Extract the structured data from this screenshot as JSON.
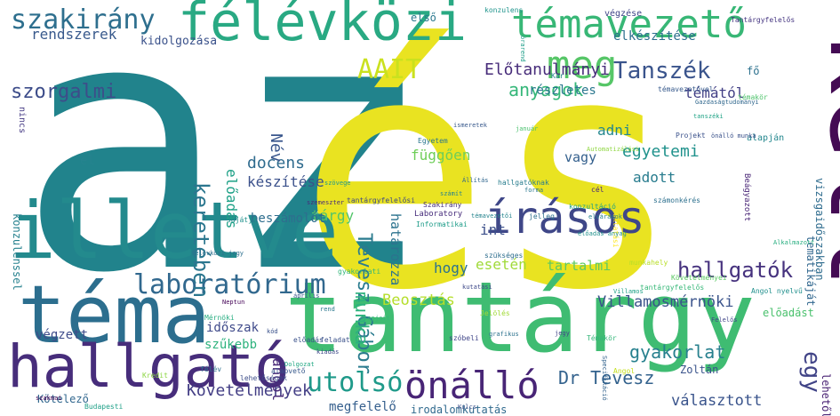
{
  "words": [
    {
      "text": "az",
      "color": "#21838c"
    },
    {
      "text": "és",
      "color": "#e9e321"
    },
    {
      "text": "tantárgy",
      "color": "#3fbc72"
    },
    {
      "text": "kell",
      "color": "#440b54"
    },
    {
      "text": "téma",
      "color": "#2c6e8e"
    },
    {
      "text": "illetve",
      "color": "#238a8d"
    },
    {
      "text": "hallgató",
      "color": "#472d7b"
    },
    {
      "text": "félévközi",
      "color": "#29a983"
    },
    {
      "text": "témavezető",
      "color": "#38b776"
    },
    {
      "text": "írásos",
      "color": "#3f4788"
    },
    {
      "text": "meg",
      "color": "#56c667"
    },
    {
      "text": "szakirány",
      "color": "#2e6f8e"
    },
    {
      "text": "önálló",
      "color": "#482576"
    },
    {
      "text": "laboratórium",
      "color": "#31688e"
    },
    {
      "text": "utolsó",
      "color": "#1f9a8a"
    },
    {
      "text": "Tanszék",
      "color": "#3a548c"
    },
    {
      "text": "keretében",
      "color": "#2a768e"
    },
    {
      "text": "AAIT",
      "color": "#cae11f"
    },
    {
      "text": "hallgatók",
      "color": "#46327e"
    },
    {
      "text": "egy",
      "color": "#414487"
    },
    {
      "text": "Tevesz Gábor",
      "color": "#2a7b8e"
    },
    {
      "text": "szorgalmi",
      "color": "#3d4d8a"
    },
    {
      "text": "anyagok",
      "color": "#35b779"
    },
    {
      "text": "Előtanulmányi",
      "color": "#472c7a"
    },
    {
      "text": "Villamosmérnöki",
      "color": "#3a538b"
    },
    {
      "text": "gyakorlat",
      "color": "#27808e"
    },
    {
      "text": "Dr Tevesz",
      "color": "#33628d"
    },
    {
      "text": "Követelmények",
      "color": "#433e85"
    },
    {
      "text": "rendszerek",
      "color": "#38598c"
    },
    {
      "text": "Beosztás",
      "color": "#b5de2b"
    },
    {
      "text": "munka",
      "color": "#2db27d"
    },
    {
      "text": "docens",
      "color": "#2f6b8e"
    },
    {
      "text": "függően",
      "color": "#6ece58"
    },
    {
      "text": "egyetemi",
      "color": "#20928c"
    },
    {
      "text": "témától",
      "color": "#423f85"
    },
    {
      "text": "részletes",
      "color": "#2a778e"
    },
    {
      "text": "elkészítése",
      "color": "#2d708e"
    },
    {
      "text": "kidolgozása",
      "color": "#3b528b"
    },
    {
      "text": "Név",
      "color": "#39568c"
    },
    {
      "text": "előadás",
      "color": "#1fa187"
    },
    {
      "text": "készítése",
      "color": "#3b518b"
    },
    {
      "text": "tárgy",
      "color": "#52c569"
    },
    {
      "text": "beszámolót",
      "color": "#2e6e8e"
    },
    {
      "text": "int",
      "color": "#3c4f8a"
    },
    {
      "text": "hogy",
      "color": "#2c728e"
    },
    {
      "text": "esetén",
      "color": "#a0da39"
    },
    {
      "text": "tartalmi",
      "color": "#5ec962"
    },
    {
      "text": "adott",
      "color": "#287c8e"
    },
    {
      "text": "adni",
      "color": "#24878e"
    },
    {
      "text": "vagy",
      "color": "#34608d"
    },
    {
      "text": "határozza",
      "color": "#2c738e"
    },
    {
      "text": "időszak",
      "color": "#3f4a8a"
    },
    {
      "text": "szűkebb",
      "color": "#2db27d"
    },
    {
      "text": "angol",
      "color": "#482878"
    },
    {
      "text": "végzett",
      "color": "#3e4c8a"
    },
    {
      "text": "konzulenssel",
      "color": "#26818e"
    },
    {
      "text": "megfelelő",
      "color": "#355f8d"
    },
    {
      "text": "választott",
      "color": "#3a548c"
    },
    {
      "text": "előadást",
      "color": "#4ac16d"
    },
    {
      "text": "lehetőleg",
      "color": "#482173"
    },
    {
      "text": "tematikáját",
      "color": "#31678e"
    },
    {
      "text": "vizsgaidőszakban",
      "color": "#2f6c8e"
    },
    {
      "text": "Kötelező",
      "color": "#31678e"
    },
    {
      "text": "irodalomkutatás",
      "color": "#306a8e"
    },
    {
      "text": "el",
      "color": "#25838e"
    },
    {
      "text": "első",
      "color": "#2a788e"
    },
    {
      "text": "nincs",
      "color": "#443983"
    },
    {
      "text": "fő",
      "color": "#2c718e"
    },
    {
      "text": "végzése",
      "color": "#404688"
    },
    {
      "text": "témavezetővel",
      "color": "#375a8c"
    },
    {
      "text": "Projekt",
      "color": "#3b528b"
    },
    {
      "text": "Egyetem",
      "color": "#2a768e"
    },
    {
      "text": "Informatikai",
      "color": "#1e9c89"
    },
    {
      "text": "Budapesti",
      "color": "#1fa088"
    },
    {
      "text": "Laboratory",
      "color": "#472d7b"
    },
    {
      "text": "munkahely",
      "color": "#b8de29"
    },
    {
      "text": "szükséges",
      "color": "#2e6e8e"
    },
    {
      "text": "tantárgyfelelős",
      "color": "#37b878"
    },
    {
      "text": "Szakirány",
      "color": "#46307e"
    },
    {
      "text": "Gazdaságtudományi",
      "color": "#31688e"
    },
    {
      "text": "Tantárgyfelelős",
      "color": "#453581"
    },
    {
      "text": "Zoltán",
      "color": "#3a538b"
    },
    {
      "text": "alapján",
      "color": "#24878e"
    },
    {
      "text": "konzulens",
      "color": "#1f948c"
    },
    {
      "text": "Beágyazott",
      "color": "#482475"
    },
    {
      "text": "lehetőségek",
      "color": "#3d4e8a"
    },
    {
      "text": "oktatási",
      "color": "#fde725"
    },
    {
      "text": "gyakorlati",
      "color": "#32b67a"
    },
    {
      "text": "Jelölés",
      "color": "#a2da37"
    },
    {
      "text": "Kredit",
      "color": "#8ed645"
    },
    {
      "text": "Angol",
      "color": "#c5e021"
    },
    {
      "text": "Mérnöki",
      "color": "#27ad81"
    },
    {
      "text": "Követelményei",
      "color": "#5cc863"
    },
    {
      "text": "Angol nyelvű",
      "color": "#21908d"
    },
    {
      "text": "témakör",
      "color": "#4ec36b"
    },
    {
      "text": "félév",
      "color": "#2d708e"
    },
    {
      "text": "alapvető",
      "color": "#38598c"
    },
    {
      "text": "előadás",
      "color": "#3b528b"
    },
    {
      "text": "sajátja",
      "color": "#21918c"
    },
    {
      "text": "feladat",
      "color": "#3b528b"
    },
    {
      "text": "Kar",
      "color": "#26828e"
    },
    {
      "text": "hallgatóknak",
      "color": "#287d8e"
    },
    {
      "text": "Témakör",
      "color": "#34b679"
    },
    {
      "text": "jelleg",
      "color": "#2e6f8e"
    },
    {
      "text": "szóbeli",
      "color": "#404688"
    },
    {
      "text": "cél",
      "color": "#482979"
    },
    {
      "text": "számonkérés",
      "color": "#2d708e"
    },
    {
      "text": "tantárgyfelelősi",
      "color": "#3e4a89"
    },
    {
      "text": "konzultáció",
      "color": "#1fa088"
    },
    {
      "text": "tanszéki",
      "color": "#20a386"
    },
    {
      "text": "szemeszter",
      "color": "#472c7a"
    },
    {
      "text": "kutatási",
      "color": "#3e4989"
    },
    {
      "text": "elvárások",
      "color": "#26818e"
    },
    {
      "text": "témavezetői",
      "color": "#25848e"
    },
    {
      "text": "Automatizálási",
      "color": "#90d743"
    },
    {
      "text": "Alkalmazott",
      "color": "#28ae80"
    },
    {
      "text": "Villamos",
      "color": "#1fa187"
    },
    {
      "text": "önálló munka",
      "color": "#3b528b"
    },
    {
      "text": "ismeretek",
      "color": "#38598c"
    },
    {
      "text": "félévközi jegy",
      "color": "#2d708e"
    },
    {
      "text": "előadás anyag",
      "color": "#21918c"
    },
    {
      "text": "január",
      "color": "#4ac16d"
    },
    {
      "text": "grafikus",
      "color": "#2c728e"
    },
    {
      "text": "jegy",
      "color": "#414487"
    },
    {
      "text": "Specifikáció",
      "color": "#33638d"
    },
    {
      "text": "rend",
      "color": "#2a788e"
    },
    {
      "text": "Neptun",
      "color": "#450457"
    },
    {
      "text": "kód",
      "color": "#3b528b"
    },
    {
      "text": "április",
      "color": "#39568c"
    },
    {
      "text": "órarend",
      "color": "#1f9e89"
    },
    {
      "text": "alapjait",
      "color": "#35b779"
    },
    {
      "text": "Dolgozat",
      "color": "#22a884"
    },
    {
      "text": "kiadás",
      "color": "#3e4989"
    },
    {
      "text": "szövege",
      "color": "#1f968b"
    },
    {
      "text": "Állítás",
      "color": "#31678e"
    },
    {
      "text": "szakmai",
      "color": "#440154"
    },
    {
      "text": "számít",
      "color": "#26828e"
    },
    {
      "text": "forma",
      "color": "#2a788e"
    },
    {
      "text": "Kulcs",
      "color": "#3c4f8a"
    },
    {
      "text": "Felelős",
      "color": "#404688"
    }
  ]
}
